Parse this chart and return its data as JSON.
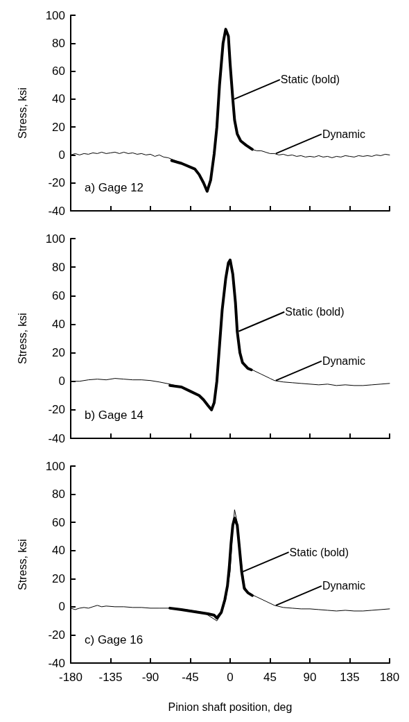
{
  "chart_data": [
    {
      "type": "line",
      "ylabel": "Stress, ksi",
      "annotations": [
        "a) Gage 12"
      ],
      "xlim": [
        -180,
        180
      ],
      "xticks": [
        -180,
        -135,
        -90,
        -45,
        0,
        45,
        90,
        135,
        180
      ],
      "ylim": [
        -40,
        100
      ],
      "yticks": [
        -40,
        -20,
        0,
        20,
        40,
        60,
        80,
        100
      ],
      "grid": false,
      "legend": false,
      "marker": "none",
      "line_style": "solid",
      "tick_labels": "y",
      "series": [
        {
          "name": "Dynamic",
          "color": "#000000",
          "x": [
            -180,
            -175,
            -170,
            -165,
            -160,
            -155,
            -150,
            -145,
            -140,
            -135,
            -130,
            -125,
            -120,
            -115,
            -110,
            -105,
            -100,
            -95,
            -90,
            -85,
            -80,
            -75,
            -70,
            -66,
            -55,
            -40,
            -35,
            -30,
            -26,
            -22,
            -18,
            -15,
            -12,
            -8,
            -5,
            -2,
            0,
            3,
            5,
            8,
            12,
            18,
            25,
            30,
            35,
            40,
            45,
            50,
            55,
            60,
            65,
            70,
            75,
            80,
            85,
            90,
            95,
            100,
            105,
            110,
            115,
            120,
            125,
            130,
            135,
            140,
            145,
            150,
            155,
            160,
            165,
            170,
            175,
            180
          ],
          "values": [
            0,
            1,
            0,
            1,
            0.5,
            1.5,
            1,
            2,
            1,
            1.5,
            2,
            1,
            2,
            1,
            1.5,
            0.5,
            1,
            0,
            0.5,
            -1,
            0,
            -1.5,
            -2,
            -3,
            -6,
            -10,
            -14,
            -20,
            -26,
            -18,
            1,
            20,
            50,
            80,
            90,
            85,
            65,
            40,
            25,
            15,
            10,
            7,
            4,
            3,
            3,
            2,
            1,
            1,
            0,
            0.5,
            -0.5,
            0,
            -1,
            -0.5,
            -1.5,
            -1,
            -1.5,
            -0.5,
            -1.5,
            -1,
            -2,
            -1,
            -1.5,
            -0.5,
            -1,
            -1.5,
            -0.5,
            -1,
            -0.5,
            -1,
            0,
            -0.5,
            0.5,
            0
          ]
        },
        {
          "name": "Static (bold)",
          "color": "#000000",
          "x": [
            -66,
            -55,
            -40,
            -35,
            -30,
            -26,
            -22,
            -18,
            -15,
            -12,
            -8,
            -5,
            -2,
            0,
            3,
            5,
            8,
            12,
            18,
            25
          ],
          "values": [
            -4,
            -6,
            -10,
            -14,
            -20,
            -26,
            -18,
            1,
            20,
            50,
            80,
            90,
            85,
            65,
            40,
            25,
            15,
            10,
            7,
            4
          ]
        }
      ]
    },
    {
      "type": "line",
      "ylabel": "Stress, ksi",
      "annotations": [
        "b) Gage 14"
      ],
      "xlim": [
        -180,
        180
      ],
      "xticks": [
        -180,
        -135,
        -90,
        -45,
        0,
        45,
        90,
        135,
        180
      ],
      "ylim": [
        -40,
        100
      ],
      "yticks": [
        -40,
        -20,
        0,
        20,
        40,
        60,
        80,
        100
      ],
      "grid": false,
      "legend": false,
      "marker": "none",
      "line_style": "solid",
      "tick_labels": "y",
      "series": [
        {
          "name": "Dynamic",
          "color": "#000000",
          "x": [
            -180,
            -170,
            -160,
            -150,
            -140,
            -130,
            -120,
            -110,
            -100,
            -90,
            -80,
            -68,
            -55,
            -45,
            -35,
            -30,
            -25,
            -21,
            -18,
            -15,
            -12,
            -9,
            -5,
            -2,
            0,
            3,
            6,
            8,
            11,
            14,
            20,
            25,
            35,
            45,
            50,
            60,
            70,
            80,
            90,
            100,
            110,
            120,
            130,
            140,
            150,
            160,
            170,
            180
          ],
          "values": [
            0,
            0,
            1,
            1.5,
            1,
            2,
            1.5,
            1,
            1,
            0.5,
            -0.5,
            -2,
            -4,
            -7,
            -10,
            -13,
            -17,
            -20,
            -15,
            0,
            25,
            50,
            72,
            83,
            85,
            75,
            55,
            35,
            20,
            13,
            9,
            8,
            5,
            2,
            0.5,
            -0.5,
            -1,
            -1.5,
            -2,
            -2.5,
            -2,
            -3,
            -2.5,
            -3,
            -3,
            -2.5,
            -2,
            -1.5
          ]
        },
        {
          "name": "Static (bold)",
          "color": "#000000",
          "x": [
            -68,
            -55,
            -45,
            -35,
            -30,
            -25,
            -21,
            -18,
            -15,
            -12,
            -9,
            -5,
            -2,
            0,
            3,
            6,
            8,
            11,
            14,
            20,
            24
          ],
          "values": [
            -3,
            -4,
            -7,
            -10,
            -13,
            -17,
            -20,
            -15,
            0,
            25,
            50,
            72,
            83,
            85,
            75,
            55,
            35,
            20,
            13,
            9,
            8
          ]
        }
      ]
    },
    {
      "type": "line",
      "xlabel": "Pinion shaft position, deg",
      "ylabel": "Stress, ksi",
      "annotations": [
        "c) Gage 16"
      ],
      "xlim": [
        -180,
        180
      ],
      "xticks": [
        -180,
        -135,
        -90,
        -45,
        0,
        45,
        90,
        135,
        180
      ],
      "ylim": [
        -40,
        100
      ],
      "yticks": [
        -40,
        -20,
        0,
        20,
        40,
        60,
        80,
        100
      ],
      "grid": false,
      "legend": false,
      "marker": "none",
      "line_style": "solid",
      "series": [
        {
          "name": "Dynamic",
          "color": "#000000",
          "x": [
            -180,
            -175,
            -170,
            -165,
            -160,
            -155,
            -150,
            -145,
            -140,
            -130,
            -120,
            -110,
            -100,
            -90,
            -80,
            -68,
            -50,
            -30,
            -15,
            -10,
            -5,
            0,
            3,
            5,
            8,
            12,
            16,
            20,
            30,
            40,
            50,
            60,
            70,
            80,
            90,
            100,
            110,
            120,
            130,
            140,
            150,
            160,
            170,
            180
          ],
          "values": [
            -1,
            -2,
            -1,
            -0.5,
            -1,
            0,
            1,
            0,
            0.5,
            0,
            0,
            -0.5,
            -0.5,
            -1,
            -1,
            -1,
            -2,
            -4,
            -10,
            -5,
            5,
            25,
            55,
            69,
            60,
            35,
            15,
            10,
            7,
            4,
            1,
            -0.5,
            -1,
            -1.5,
            -1.5,
            -2,
            -2.5,
            -3,
            -2.5,
            -3,
            -3,
            -2.5,
            -2,
            -1.5
          ]
        },
        {
          "name": "Static (bold)",
          "color": "#000000",
          "x": [
            -68,
            -55,
            -45,
            -35,
            -25,
            -18,
            -15,
            -10,
            -6,
            -3,
            -1,
            1,
            3,
            5,
            8,
            10,
            13,
            16,
            20,
            25
          ],
          "values": [
            -1,
            -2,
            -3,
            -4,
            -5,
            -6,
            -8,
            -4,
            5,
            15,
            28,
            45,
            58,
            63,
            58,
            45,
            25,
            13,
            10,
            8
          ]
        }
      ]
    }
  ]
}
